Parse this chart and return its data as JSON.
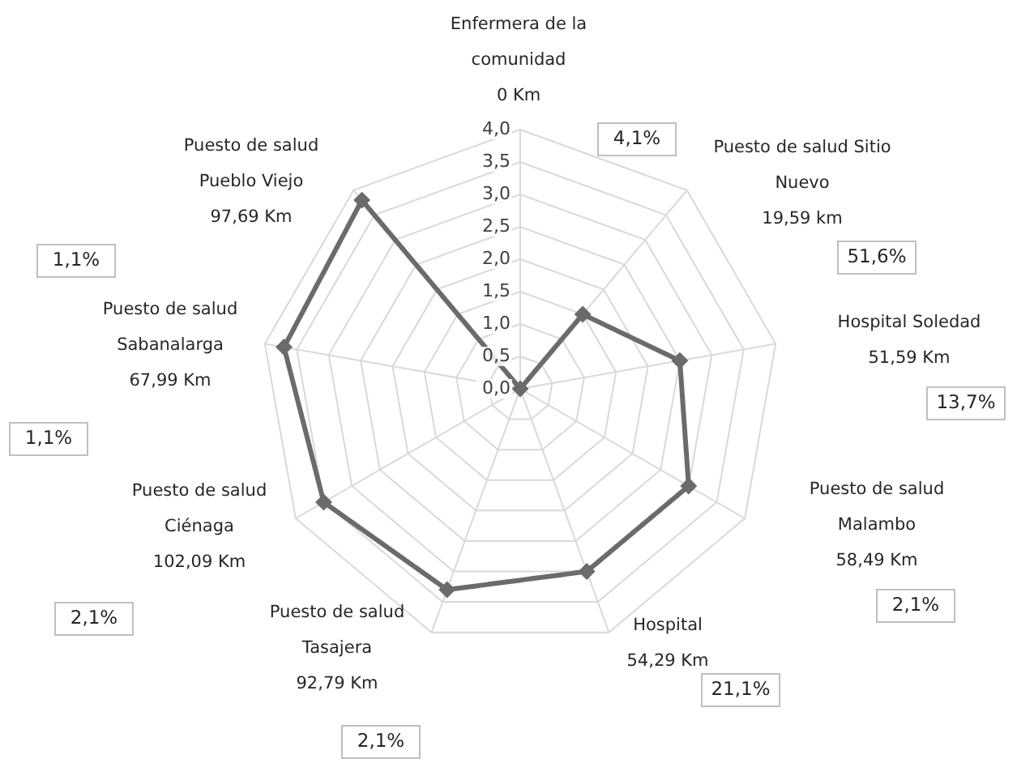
{
  "chart_data": {
    "type": "radar",
    "categories": [
      "Enfermera de la\ncomunidad\n0 Km",
      "Puesto de salud Sitio\nNuevo\n19,59 km",
      "Hospital Soledad\n51,59 Km",
      "Puesto de salud\nMalambo\n58,49 Km",
      "Hospital\n54,29 Km",
      "Puesto de salud\nTasajera\n92,79 Km",
      "Puesto de salud\nCiénaga\n102,09 Km",
      "Puesto de salud\nSabanalarga\n67,99 Km",
      "Puesto de salud\nPueblo Viejo\n97,69 Km"
    ],
    "series": [
      {
        "color": "#6b6b6b",
        "values": [
          0,
          1.5,
          2.5,
          3.0,
          3.0,
          3.3,
          3.5,
          3.7,
          3.8
        ]
      }
    ],
    "ylim": [
      0,
      4
    ],
    "yticks": [
      {
        "value": 0,
        "label": "0,0"
      },
      {
        "value": 0.5,
        "label": "0,5"
      },
      {
        "value": 1,
        "label": "1,0"
      },
      {
        "value": 1.5,
        "label": "1,5"
      },
      {
        "value": 2,
        "label": "2,0"
      },
      {
        "value": 2.5,
        "label": "2,5"
      },
      {
        "value": 3,
        "label": "3,0"
      },
      {
        "value": 3.5,
        "label": "3,5"
      },
      {
        "value": 4,
        "label": "4,0"
      }
    ],
    "annotations": [
      "4,1%",
      "51,6%",
      "13,7%",
      "2,1%",
      "21,1%",
      "2,1%",
      "2,1%",
      "1,1%",
      "1,1%"
    ],
    "grid": true,
    "marker": "diamond",
    "line_style": "solid"
  }
}
